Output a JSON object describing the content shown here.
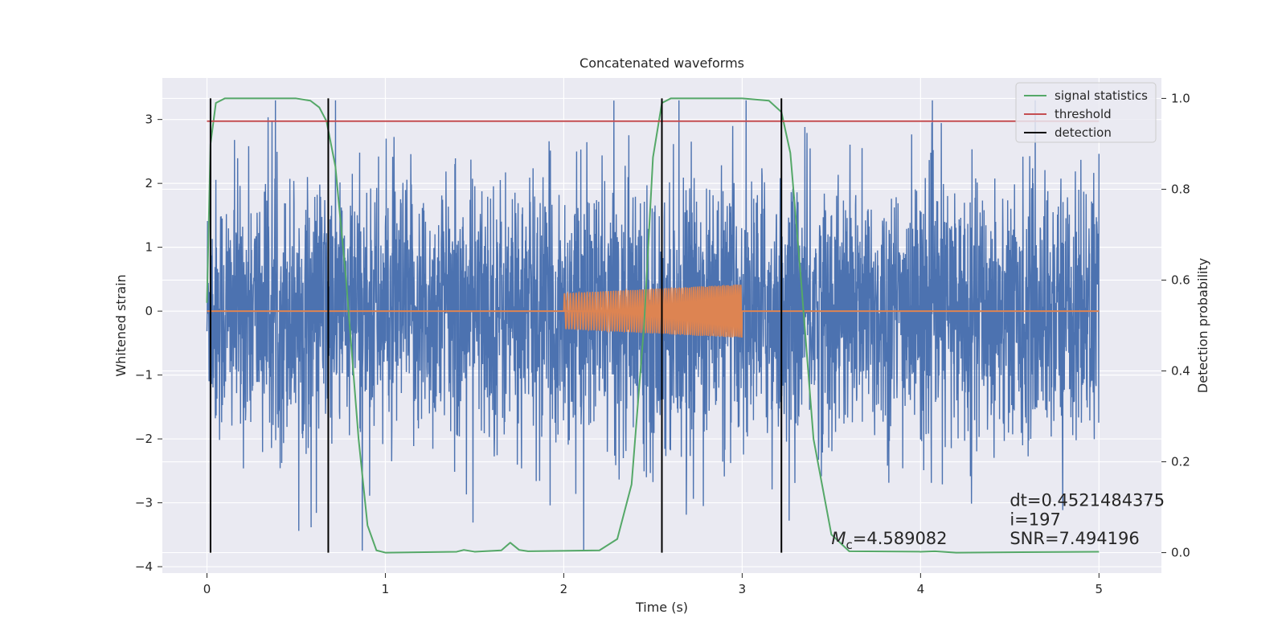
{
  "chart_data": {
    "type": "line",
    "title": "Concatenated waveforms",
    "xlabel": "Time (s)",
    "ylabel": "Whitened strain",
    "y2label": "Detection probability",
    "xlim": [
      -0.25,
      5.35
    ],
    "ylim": [
      -4.1,
      3.65
    ],
    "y2lim": [
      -0.045,
      1.045
    ],
    "xticks": [
      0,
      1,
      2,
      3,
      4,
      5
    ],
    "xtick_labels": [
      "0",
      "1",
      "2",
      "3",
      "4",
      "5"
    ],
    "yticks": [
      3,
      2,
      1,
      0,
      -1,
      -2,
      -3,
      -4
    ],
    "ytick_labels": [
      "3",
      "2",
      "1",
      "0",
      "−1",
      "−2",
      "−3",
      "−4"
    ],
    "y2ticks": [
      1.0,
      0.8,
      0.6,
      0.4,
      0.2,
      0.0
    ],
    "y2tick_labels": [
      "1.0",
      "0.8",
      "0.6",
      "0.4",
      "0.2",
      "0.0"
    ],
    "grid": true,
    "legend_position": "top-right",
    "colors": {
      "strain": "#4c72b0",
      "template": "#dd8452",
      "signal_statistics": "#55a868",
      "threshold": "#c44e52",
      "detection": "#000000",
      "background": "#eaeaf2",
      "grid": "#ffffff"
    },
    "series": [
      {
        "name": "signal statistics",
        "axis": "right",
        "x": [
          0,
          0.02,
          0.05,
          0.1,
          0.3,
          0.5,
          0.58,
          0.63,
          0.67,
          0.72,
          0.78,
          0.85,
          0.9,
          0.95,
          1.0,
          1.4,
          1.44,
          1.5,
          1.65,
          1.7,
          1.75,
          1.8,
          2.2,
          2.3,
          2.38,
          2.45,
          2.5,
          2.55,
          2.6,
          3.0,
          3.15,
          3.22,
          3.27,
          3.33,
          3.4,
          3.5,
          3.6,
          4.0,
          4.08,
          4.2,
          5.0
        ],
        "y": [
          0.55,
          0.9,
          0.99,
          1.0,
          1.0,
          1.0,
          0.995,
          0.98,
          0.95,
          0.85,
          0.6,
          0.25,
          0.06,
          0.005,
          0.0,
          0.002,
          0.006,
          0.002,
          0.005,
          0.022,
          0.006,
          0.003,
          0.005,
          0.03,
          0.15,
          0.5,
          0.87,
          0.99,
          1.0,
          1.0,
          0.995,
          0.97,
          0.88,
          0.6,
          0.25,
          0.04,
          0.003,
          0.002,
          0.003,
          0.0,
          0.002
        ]
      },
      {
        "name": "threshold",
        "axis": "right",
        "x": [
          0,
          5
        ],
        "y": [
          0.95,
          0.95
        ]
      },
      {
        "name": "detection",
        "axis": "right",
        "x": [
          0.02,
          0.68,
          2.55,
          3.22
        ],
        "ymin": 0.0,
        "ymax": 1.0
      }
    ],
    "strain_series": {
      "axis": "left",
      "t_start": 0,
      "t_end": 5,
      "typical_amplitude": 1.3,
      "max": 3.3,
      "min": -3.75
    },
    "template_series": {
      "axis": "left",
      "t_start": 2.0,
      "t_end": 3.0,
      "amplitude_start": 0.28,
      "amplitude_end": 0.42
    },
    "annotations": [
      {
        "id": "mc",
        "prefix": "M",
        "subscript": "c",
        "text": "=4.589082",
        "x": 3.5,
        "y": -3.65
      },
      {
        "id": "dt",
        "text": "dt=0.4521484375",
        "x": 4.5,
        "y": -3.05
      },
      {
        "id": "i",
        "text": " i=197",
        "x": 4.5,
        "y": -3.35
      },
      {
        "id": "snr",
        "text": "SNR=7.494196",
        "x": 4.5,
        "y": -3.65
      }
    ]
  }
}
